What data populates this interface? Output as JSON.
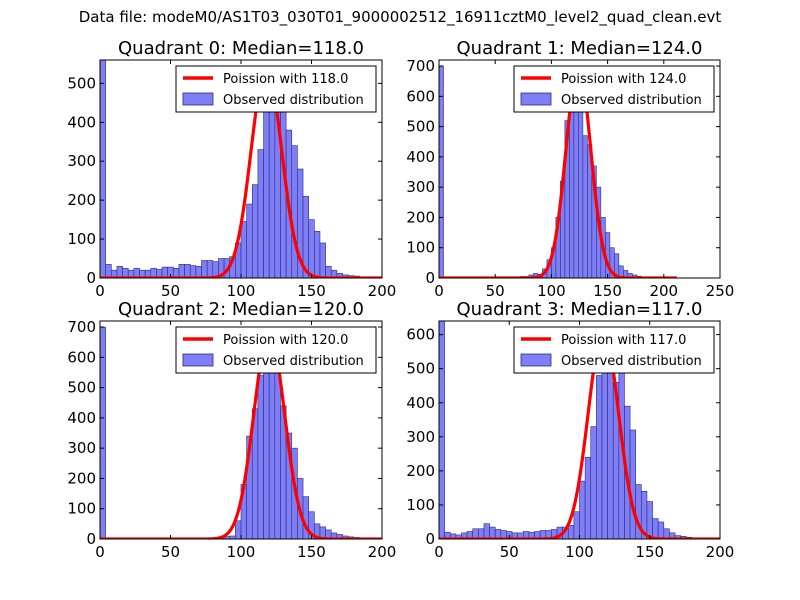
{
  "suptitle": "Data file: modeM0/AS1T03_030T01_9000002512_16911cztM0_level2_quad_clean.evt",
  "colors": {
    "hist_fill": "#7f7ff5",
    "hist_edge": "#2a2a88",
    "poisson": "#ff0000",
    "axis": "#000000"
  },
  "chart_data": [
    {
      "type": "bar",
      "title": "Quadrant 0: Median=118.0",
      "median": 118.0,
      "xlim": [
        0,
        200
      ],
      "ylim": [
        0,
        560
      ],
      "xticks": [
        0,
        50,
        100,
        150,
        200
      ],
      "yticks": [
        0,
        100,
        200,
        300,
        400,
        500
      ],
      "legend": [
        "Poission with 118.0",
        "Observed distribution"
      ],
      "legend_loc": "upper right",
      "bin_width": 4,
      "bin_starts": [
        0,
        4,
        8,
        12,
        16,
        20,
        24,
        28,
        32,
        36,
        40,
        44,
        48,
        52,
        56,
        60,
        64,
        68,
        72,
        76,
        80,
        84,
        88,
        92,
        96,
        100,
        104,
        108,
        112,
        116,
        120,
        124,
        128,
        132,
        136,
        140,
        144,
        148,
        152,
        156,
        160,
        164,
        168,
        172,
        176,
        180,
        184,
        188
      ],
      "values": [
        560,
        35,
        20,
        30,
        25,
        20,
        25,
        20,
        20,
        25,
        22,
        28,
        28,
        25,
        35,
        35,
        32,
        30,
        45,
        45,
        42,
        50,
        50,
        55,
        90,
        145,
        190,
        240,
        330,
        460,
        430,
        430,
        505,
        380,
        340,
        280,
        210,
        150,
        120,
        90,
        30,
        20,
        12,
        8,
        6,
        5,
        3,
        2
      ],
      "poisson_curve": {
        "lambda": 118.0,
        "peak": 540
      }
    },
    {
      "type": "bar",
      "title": "Quadrant 1: Median=124.0",
      "median": 124.0,
      "xlim": [
        0,
        250
      ],
      "ylim": [
        0,
        720
      ],
      "xticks": [
        0,
        50,
        100,
        150,
        200,
        250
      ],
      "yticks": [
        0,
        100,
        200,
        300,
        400,
        500,
        600,
        700
      ],
      "legend": [
        "Poission with 124.0",
        "Observed distribution"
      ],
      "legend_loc": "upper right",
      "bin_width": 4,
      "bin_starts": [
        0,
        4,
        8,
        12,
        16,
        20,
        24,
        28,
        32,
        36,
        40,
        44,
        48,
        52,
        56,
        60,
        64,
        68,
        72,
        76,
        80,
        84,
        88,
        92,
        96,
        100,
        104,
        108,
        112,
        116,
        120,
        124,
        128,
        132,
        136,
        140,
        144,
        148,
        152,
        156,
        160,
        164,
        168,
        172,
        176,
        180,
        184,
        188,
        192,
        196,
        200,
        204,
        208
      ],
      "values": [
        700,
        2,
        2,
        2,
        2,
        2,
        2,
        2,
        2,
        2,
        2,
        2,
        2,
        2,
        2,
        2,
        2,
        2,
        5,
        5,
        10,
        15,
        12,
        30,
        60,
        100,
        200,
        320,
        520,
        590,
        670,
        580,
        470,
        440,
        370,
        300,
        200,
        150,
        100,
        80,
        40,
        25,
        15,
        10,
        6,
        3,
        2,
        1,
        1,
        1,
        0,
        0,
        0
      ],
      "poisson_curve": {
        "lambda": 124.0,
        "peak": 695
      }
    },
    {
      "type": "bar",
      "title": "Quadrant 2: Median=120.0",
      "median": 120.0,
      "xlim": [
        0,
        200
      ],
      "ylim": [
        0,
        720
      ],
      "xticks": [
        0,
        50,
        100,
        150,
        200
      ],
      "yticks": [
        0,
        100,
        200,
        300,
        400,
        500,
        600,
        700
      ],
      "legend": [
        "Poission with 120.0",
        "Observed distribution"
      ],
      "legend_loc": "upper right",
      "bin_width": 4,
      "bin_starts": [
        0,
        4,
        8,
        12,
        16,
        20,
        24,
        28,
        32,
        36,
        40,
        44,
        48,
        52,
        56,
        60,
        64,
        68,
        72,
        76,
        80,
        84,
        88,
        92,
        96,
        100,
        104,
        108,
        112,
        116,
        120,
        124,
        128,
        132,
        136,
        140,
        144,
        148,
        152,
        156,
        160,
        164,
        168,
        172,
        176,
        180,
        184,
        188
      ],
      "values": [
        700,
        2,
        2,
        2,
        2,
        2,
        2,
        2,
        2,
        2,
        2,
        2,
        2,
        2,
        2,
        2,
        2,
        2,
        2,
        2,
        2,
        4,
        8,
        10,
        60,
        180,
        340,
        430,
        540,
        600,
        650,
        600,
        440,
        350,
        300,
        200,
        140,
        90,
        50,
        40,
        30,
        20,
        15,
        10,
        7,
        5,
        3,
        2
      ],
      "poisson_curve": {
        "lambda": 120.0,
        "peak": 680
      }
    },
    {
      "type": "bar",
      "title": "Quadrant 3: Median=117.0",
      "median": 117.0,
      "xlim": [
        0,
        200
      ],
      "ylim": [
        0,
        640
      ],
      "xticks": [
        0,
        50,
        100,
        150,
        200
      ],
      "yticks": [
        0,
        100,
        200,
        300,
        400,
        500,
        600
      ],
      "legend": [
        "Poission with 117.0",
        "Observed distribution"
      ],
      "legend_loc": "upper right",
      "bin_width": 4,
      "bin_starts": [
        0,
        4,
        8,
        12,
        16,
        20,
        24,
        28,
        32,
        36,
        40,
        44,
        48,
        52,
        56,
        60,
        64,
        68,
        72,
        76,
        80,
        84,
        88,
        92,
        96,
        100,
        104,
        108,
        112,
        116,
        120,
        124,
        128,
        132,
        136,
        140,
        144,
        148,
        152,
        156,
        160,
        164,
        168,
        172,
        176,
        180,
        184,
        188
      ],
      "values": [
        640,
        20,
        15,
        12,
        18,
        22,
        30,
        30,
        45,
        35,
        28,
        25,
        22,
        18,
        18,
        22,
        20,
        22,
        25,
        25,
        28,
        35,
        35,
        40,
        80,
        170,
        240,
        330,
        480,
        540,
        490,
        460,
        530,
        390,
        320,
        160,
        140,
        110,
        60,
        50,
        30,
        18,
        10,
        8,
        5,
        3,
        2,
        1
      ],
      "poisson_curve": {
        "lambda": 117.0,
        "peak": 610
      }
    }
  ]
}
